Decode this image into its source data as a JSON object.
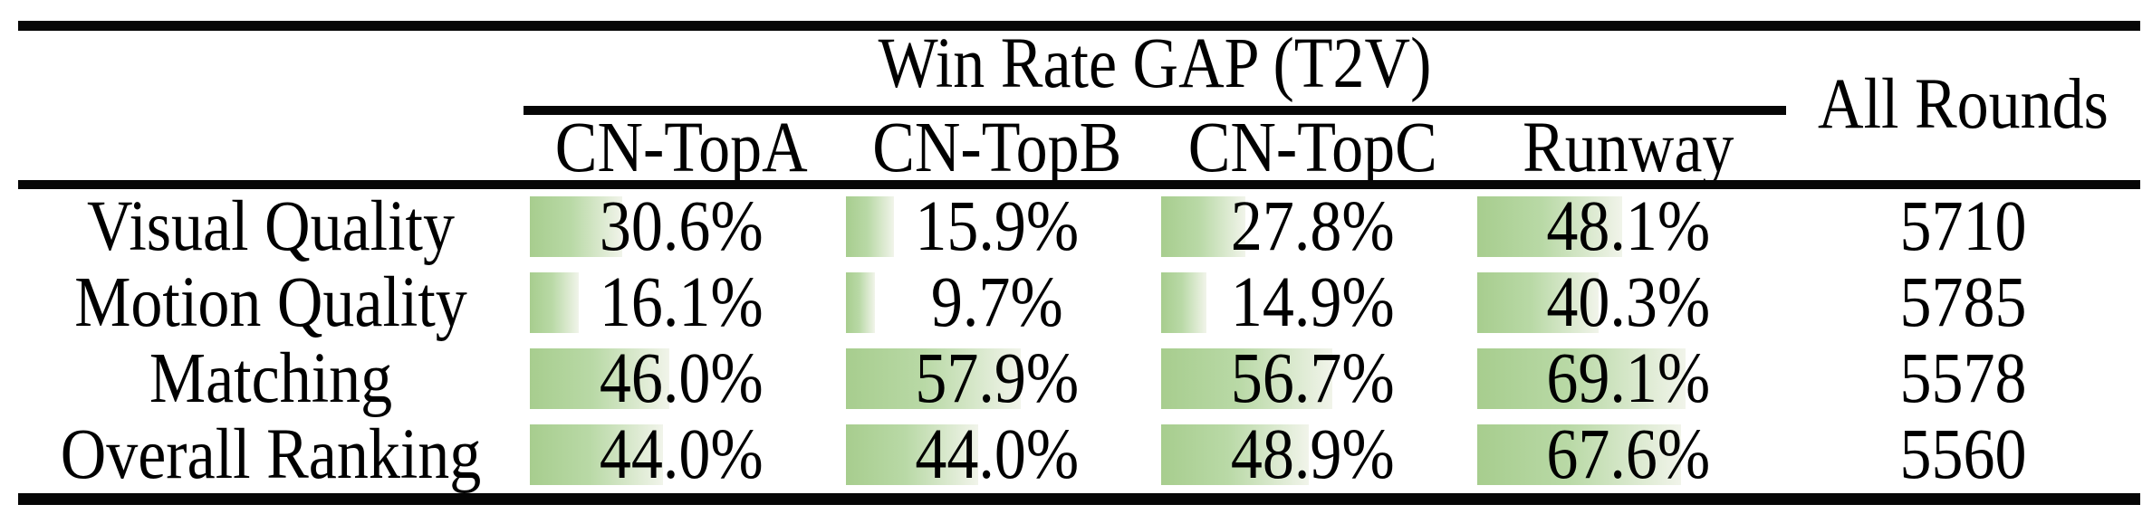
{
  "table": {
    "group_header": "Win Rate GAP (T2V)",
    "all_rounds_header": "All Rounds",
    "model_columns": [
      "CN-TopA",
      "CN-TopB",
      "CN-TopC",
      "Runway"
    ],
    "rows": [
      {
        "label": "Visual Quality",
        "win_rates": [
          "30.6%",
          "15.9%",
          "27.8%",
          "48.1%"
        ],
        "all_rounds": "5710"
      },
      {
        "label": "Motion Quality",
        "win_rates": [
          "16.1%",
          "9.7%",
          "14.9%",
          "40.3%"
        ],
        "all_rounds": "5785"
      },
      {
        "label": "Matching",
        "win_rates": [
          "46.0%",
          "57.9%",
          "56.7%",
          "69.1%"
        ],
        "all_rounds": "5578"
      },
      {
        "label": "Overall Ranking",
        "win_rates": [
          "44.0%",
          "44.0%",
          "48.9%",
          "67.6%"
        ],
        "all_rounds": "5560"
      }
    ],
    "colors": {
      "bar_gradient_start": "#a7cd8e",
      "bar_gradient_end": "#f1f4ea",
      "rule_black": "#060606"
    }
  },
  "chart_data": {
    "type": "table",
    "title": "Win Rate GAP (T2V)",
    "columns": [
      "CN-TopA",
      "CN-TopB",
      "CN-TopC",
      "Runway",
      "All Rounds"
    ],
    "rows": [
      {
        "label": "Visual Quality",
        "win_rate_gap_percent": [
          30.6,
          15.9,
          27.8,
          48.1
        ],
        "all_rounds": 5710
      },
      {
        "label": "Motion Quality",
        "win_rate_gap_percent": [
          16.1,
          9.7,
          14.9,
          40.3
        ],
        "all_rounds": 5785
      },
      {
        "label": "Matching",
        "win_rate_gap_percent": [
          46.0,
          57.9,
          56.7,
          69.1
        ],
        "all_rounds": 5578
      },
      {
        "label": "Overall Ranking",
        "win_rate_gap_percent": [
          44.0,
          44.0,
          48.9,
          67.6
        ],
        "all_rounds": 5560
      }
    ],
    "cell_bars": "horizontal green gradient data bars behind each percentage, width proportional to value (100% = full cell width)"
  }
}
